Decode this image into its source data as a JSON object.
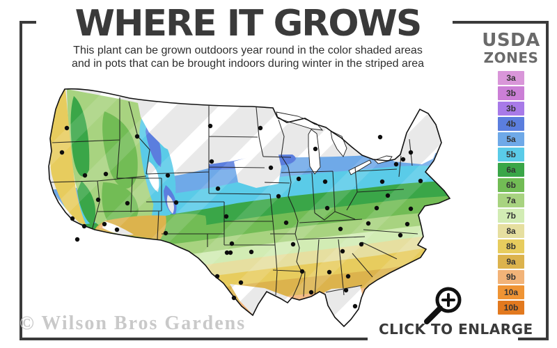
{
  "header": {
    "title": "WHERE IT GROWS",
    "subtitle_line1": "This plant can be grown outdoors year round in the color shaded areas",
    "subtitle_line2": "and in pots that can be brought indoors during winter in the striped area"
  },
  "legend": {
    "title_line1": "USDA",
    "title_line2": "ZONES",
    "zones": [
      {
        "label": "3a",
        "color": "#d996d9"
      },
      {
        "label": "3b",
        "color": "#cb7fd6"
      },
      {
        "label": "3b",
        "color": "#a87ae8"
      },
      {
        "label": "4b",
        "color": "#5b7ede"
      },
      {
        "label": "5a",
        "color": "#6fa9e8"
      },
      {
        "label": "5b",
        "color": "#5acbe8"
      },
      {
        "label": "6a",
        "color": "#3aa648"
      },
      {
        "label": "6b",
        "color": "#72bc55"
      },
      {
        "label": "7a",
        "color": "#a8d380"
      },
      {
        "label": "7b",
        "color": "#d2ecb4"
      },
      {
        "label": "8a",
        "color": "#e6dfa0"
      },
      {
        "label": "8b",
        "color": "#e7cc5e"
      },
      {
        "label": "9a",
        "color": "#dcb34d"
      },
      {
        "label": "9b",
        "color": "#f2b378"
      },
      {
        "label": "10a",
        "color": "#ef9434"
      },
      {
        "label": "10b",
        "color": "#e2791f"
      }
    ]
  },
  "map": {
    "striped_color": "#e9e9e9",
    "stripe_white": "#ffffff",
    "state_border_color": "#1a1a1a",
    "outline_color": "#111111",
    "lake_fill": "#ffffff",
    "dot_color": "#0d0d0d",
    "city_dots": [
      [
        96,
        184
      ],
      [
        89,
        219
      ],
      [
        152,
        250
      ],
      [
        197,
        196
      ],
      [
        241,
        252
      ],
      [
        302,
        181
      ],
      [
        304,
        232
      ],
      [
        141,
        287
      ],
      [
        183,
        292
      ],
      [
        122,
        252
      ],
      [
        104,
        314
      ],
      [
        121,
        325
      ],
      [
        111,
        344
      ],
      [
        150,
        322
      ],
      [
        168,
        330
      ],
      [
        238,
        335
      ],
      [
        253,
        291
      ],
      [
        313,
        271
      ],
      [
        325,
        311
      ],
      [
        333,
        350
      ],
      [
        326,
        363
      ],
      [
        331,
        363
      ],
      [
        312,
        397
      ],
      [
        346,
        406
      ],
      [
        336,
        428
      ],
      [
        361,
        362
      ],
      [
        374,
        184
      ],
      [
        389,
        241
      ],
      [
        400,
        282
      ],
      [
        411,
        320
      ],
      [
        421,
        351
      ],
      [
        434,
        390
      ],
      [
        447,
        420
      ],
      [
        429,
        257
      ],
      [
        453,
        214
      ],
      [
        467,
        261
      ],
      [
        470,
        299
      ],
      [
        489,
        329
      ],
      [
        492,
        361
      ],
      [
        473,
        391
      ],
      [
        500,
        397
      ],
      [
        497,
        417
      ],
      [
        510,
        440
      ],
      [
        519,
        351
      ],
      [
        529,
        321
      ],
      [
        541,
        299
      ],
      [
        549,
        261
      ],
      [
        557,
        281
      ],
      [
        569,
        236
      ],
      [
        579,
        229
      ],
      [
        590,
        219
      ],
      [
        604,
        260
      ],
      [
        590,
        300
      ],
      [
        585,
        322
      ],
      [
        575,
        338
      ],
      [
        546,
        197
      ]
    ]
  },
  "footer": {
    "watermark": "© Wilson Bros Gardens",
    "enlarge_label": "CLICK TO ENLARGE"
  },
  "frame": {
    "color": "#3a3a3a"
  }
}
